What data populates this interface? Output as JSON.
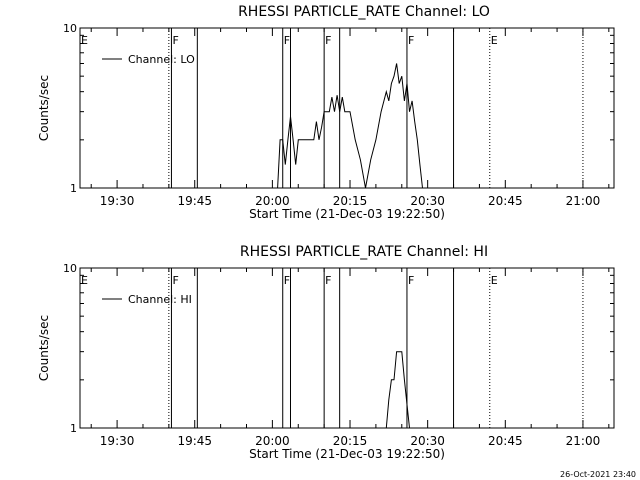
{
  "footer_timestamp": "26-Oct-2021 23:40",
  "chart_data": [
    {
      "type": "line",
      "title": "RHESSI PARTICLE_RATE Channel: LO",
      "xlabel": "Start Time (21-Dec-03 19:22:50)",
      "ylabel": "Counts/sec",
      "yscale": "log",
      "ylim": [
        1,
        10
      ],
      "ytick_labels": [
        "1",
        "10"
      ],
      "xlim": [
        "19:22:50",
        "21:06:00"
      ],
      "xtick_labels": [
        "19:30",
        "19:45",
        "20:00",
        "20:15",
        "20:30",
        "20:45",
        "21:00"
      ],
      "legend": {
        "placement": "top-left",
        "entries": [
          "Channel: LO"
        ]
      },
      "series": [
        {
          "name": "Channel: LO",
          "points": [
            [
              "20:01:00",
              1
            ],
            [
              "20:01:30",
              2
            ],
            [
              "20:02:00",
              2
            ],
            [
              "20:02:30",
              1.4
            ],
            [
              "20:03:00",
              2
            ],
            [
              "20:03:30",
              2.8
            ],
            [
              "20:04:00",
              2
            ],
            [
              "20:04:30",
              1.4
            ],
            [
              "20:05:00",
              2
            ],
            [
              "20:06:00",
              2
            ],
            [
              "20:07:00",
              2
            ],
            [
              "20:08:00",
              2
            ],
            [
              "20:08:30",
              2.6
            ],
            [
              "20:09:00",
              2
            ],
            [
              "20:09:30",
              2.4
            ],
            [
              "20:10:00",
              3
            ],
            [
              "20:11:00",
              3
            ],
            [
              "20:11:30",
              3.7
            ],
            [
              "20:12:00",
              3
            ],
            [
              "20:12:30",
              3.8
            ],
            [
              "20:13:00",
              3
            ],
            [
              "20:13:30",
              3.7
            ],
            [
              "20:14:00",
              3
            ],
            [
              "20:15:00",
              3
            ],
            [
              "20:16:00",
              2
            ],
            [
              "20:17:00",
              1.5
            ],
            [
              "20:18:00",
              1
            ],
            [
              "20:19:00",
              1.5
            ],
            [
              "20:20:00",
              2
            ],
            [
              "20:21:00",
              3
            ],
            [
              "20:22:00",
              4
            ],
            [
              "20:22:30",
              3.5
            ],
            [
              "20:23:00",
              4.5
            ],
            [
              "20:23:30",
              5
            ],
            [
              "20:24:00",
              6
            ],
            [
              "20:24:30",
              4.5
            ],
            [
              "20:25:00",
              5
            ],
            [
              "20:25:30",
              3.5
            ],
            [
              "20:26:00",
              4.5
            ],
            [
              "20:26:30",
              3
            ],
            [
              "20:27:00",
              3.5
            ],
            [
              "20:27:30",
              2.6
            ],
            [
              "20:28:00",
              2
            ],
            [
              "20:28:30",
              1.4
            ],
            [
              "20:29:00",
              1
            ]
          ]
        }
      ],
      "solid_markers": [
        "19:40:30",
        "19:45:30",
        "20:02:00",
        "20:03:30",
        "20:10:00",
        "20:13:00",
        "20:26:00",
        "20:35:00"
      ],
      "dotted_markers": [
        "19:40:00",
        "20:42:00",
        "21:00:00"
      ],
      "annotations": [
        {
          "time": "19:22:50",
          "label": "E"
        },
        {
          "time": "19:40:30",
          "label": "F"
        },
        {
          "time": "20:02:00",
          "label": "F"
        },
        {
          "time": "20:10:00",
          "label": "F"
        },
        {
          "time": "20:26:00",
          "label": "F"
        },
        {
          "time": "20:42:00",
          "label": "E"
        }
      ]
    },
    {
      "type": "line",
      "title": "RHESSI PARTICLE_RATE Channel: HI",
      "xlabel": "Start Time (21-Dec-03 19:22:50)",
      "ylabel": "Counts/sec",
      "yscale": "log",
      "ylim": [
        1,
        10
      ],
      "ytick_labels": [
        "1",
        "10"
      ],
      "xlim": [
        "19:22:50",
        "21:06:00"
      ],
      "xtick_labels": [
        "19:30",
        "19:45",
        "20:00",
        "20:15",
        "20:30",
        "20:45",
        "21:00"
      ],
      "legend": {
        "placement": "top-left",
        "entries": [
          "Channel: HI"
        ]
      },
      "series": [
        {
          "name": "Channel: HI",
          "points": [
            [
              "20:22:00",
              1
            ],
            [
              "20:22:30",
              1.5
            ],
            [
              "20:23:00",
              2
            ],
            [
              "20:23:30",
              2
            ],
            [
              "20:24:00",
              3
            ],
            [
              "20:25:00",
              3
            ],
            [
              "20:25:30",
              2
            ],
            [
              "20:26:00",
              1.4
            ],
            [
              "20:26:30",
              1
            ]
          ]
        }
      ],
      "solid_markers": [
        "19:40:30",
        "19:45:30",
        "20:02:00",
        "20:03:30",
        "20:10:00",
        "20:13:00",
        "20:26:00",
        "20:35:00"
      ],
      "dotted_markers": [
        "19:40:00",
        "20:42:00",
        "21:00:00"
      ],
      "annotations": [
        {
          "time": "19:22:50",
          "label": "E"
        },
        {
          "time": "19:40:30",
          "label": "F"
        },
        {
          "time": "20:02:00",
          "label": "F"
        },
        {
          "time": "20:10:00",
          "label": "F"
        },
        {
          "time": "20:26:00",
          "label": "F"
        },
        {
          "time": "20:42:00",
          "label": "E"
        }
      ]
    }
  ]
}
